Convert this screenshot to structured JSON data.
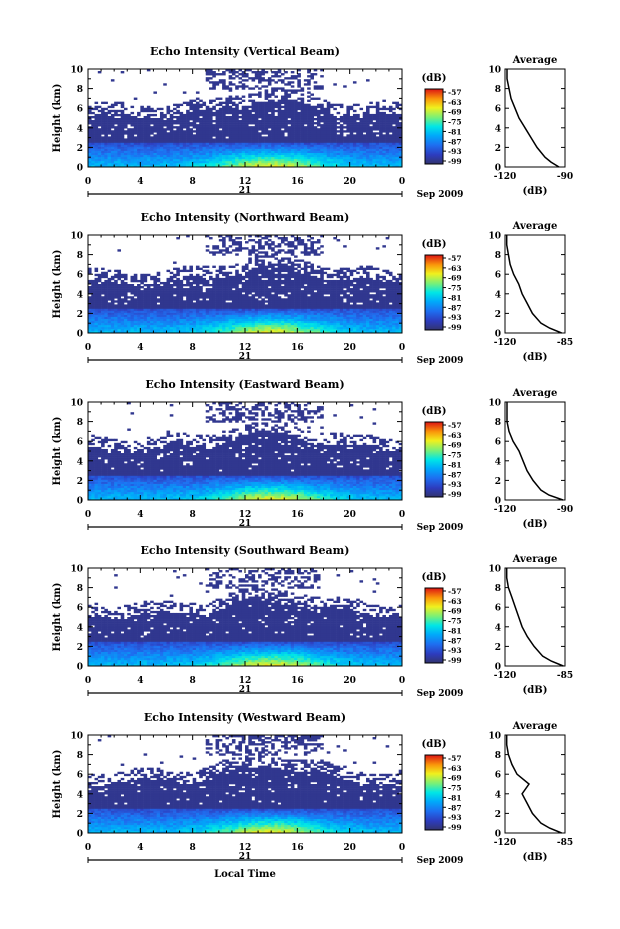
{
  "figure": {
    "date_label": "Sep 2009",
    "day_label": "21",
    "x_axis_title": "Local Time",
    "y_axis_title": "Height (km)",
    "colorbar_unit": "(dB)",
    "colorbar_ticks": [
      "-57",
      "-63",
      "-69",
      "-75",
      "-81",
      "-87",
      "-93",
      "-99"
    ],
    "average_title": "Average",
    "average_xlabel": "(dB)",
    "x_ticks": [
      "0",
      "4",
      "8",
      "12",
      "16",
      "20",
      "0"
    ],
    "y_ticks": [
      "0",
      "2",
      "4",
      "6",
      "8",
      "10"
    ],
    "avg_y_ticks": [
      "0",
      "2",
      "4",
      "6",
      "8",
      "10"
    ]
  },
  "chart_data": [
    {
      "type": "heatmap",
      "title": "Echo Intensity (Vertical Beam)",
      "xlabel": "",
      "ylabel": "Height (km)",
      "xlim": [
        0,
        24
      ],
      "ylim": [
        0,
        10
      ],
      "color_range_db": [
        -99,
        -57
      ],
      "average_profile": {
        "xlim": [
          -120,
          -90
        ],
        "x_tick_labels": [
          "-120",
          "-90"
        ],
        "height_km": [
          0,
          0.5,
          1,
          2,
          3,
          4,
          5,
          6,
          7,
          8,
          9,
          10
        ],
        "db": [
          -93,
          -97,
          -100,
          -104,
          -107,
          -110,
          -113,
          -115,
          -117,
          -118,
          -119,
          -119
        ]
      }
    },
    {
      "type": "heatmap",
      "title": "Echo Intensity (Northward Beam)",
      "xlabel": "",
      "ylabel": "Height (km)",
      "xlim": [
        0,
        24
      ],
      "ylim": [
        0,
        10
      ],
      "color_range_db": [
        -99,
        -57
      ],
      "average_profile": {
        "xlim": [
          -120,
          -85
        ],
        "x_tick_labels": [
          "-120",
          "-85"
        ],
        "height_km": [
          0,
          0.5,
          1,
          2,
          3,
          4,
          5,
          6,
          7,
          8,
          9,
          10
        ],
        "db": [
          -87,
          -94,
          -99,
          -104,
          -107,
          -110,
          -112,
          -115,
          -117,
          -118,
          -119,
          -119
        ]
      }
    },
    {
      "type": "heatmap",
      "title": "Echo Intensity (Eastward Beam)",
      "xlabel": "",
      "ylabel": "Height (km)",
      "xlim": [
        0,
        24
      ],
      "ylim": [
        0,
        10
      ],
      "color_range_db": [
        -99,
        -57
      ],
      "average_profile": {
        "xlim": [
          -120,
          -90
        ],
        "x_tick_labels": [
          "-120",
          "-90"
        ],
        "height_km": [
          0,
          0.5,
          1,
          2,
          3,
          4,
          5,
          6,
          7,
          8,
          9,
          10
        ],
        "db": [
          -91,
          -98,
          -102,
          -106,
          -109,
          -111,
          -113,
          -116,
          -118,
          -119,
          -119,
          -119
        ]
      }
    },
    {
      "type": "heatmap",
      "title": "Echo Intensity (Southward Beam)",
      "xlabel": "",
      "ylabel": "Height (km)",
      "xlim": [
        0,
        24
      ],
      "ylim": [
        0,
        10
      ],
      "color_range_db": [
        -99,
        -57
      ],
      "average_profile": {
        "xlim": [
          -120,
          -85
        ],
        "x_tick_labels": [
          "-120",
          "-85"
        ],
        "height_km": [
          0,
          0.5,
          1,
          2,
          3,
          4,
          5,
          6,
          7,
          8,
          9,
          10
        ],
        "db": [
          -86,
          -93,
          -98,
          -103,
          -107,
          -110,
          -112,
          -114,
          -116,
          -118,
          -119,
          -119
        ]
      }
    },
    {
      "type": "heatmap",
      "title": "Echo Intensity (Westward Beam)",
      "xlabel": "Local Time",
      "ylabel": "Height (km)",
      "xlim": [
        0,
        24
      ],
      "ylim": [
        0,
        10
      ],
      "color_range_db": [
        -99,
        -57
      ],
      "average_profile": {
        "xlim": [
          -120,
          -85
        ],
        "x_tick_labels": [
          "-120",
          "-85"
        ],
        "height_km": [
          0,
          0.5,
          1,
          2,
          3,
          4,
          5,
          6,
          7,
          8,
          9,
          10
        ],
        "db": [
          -87,
          -94,
          -99,
          -104,
          -107,
          -110,
          -106,
          -113,
          -116,
          -118,
          -119,
          -119
        ]
      }
    }
  ]
}
